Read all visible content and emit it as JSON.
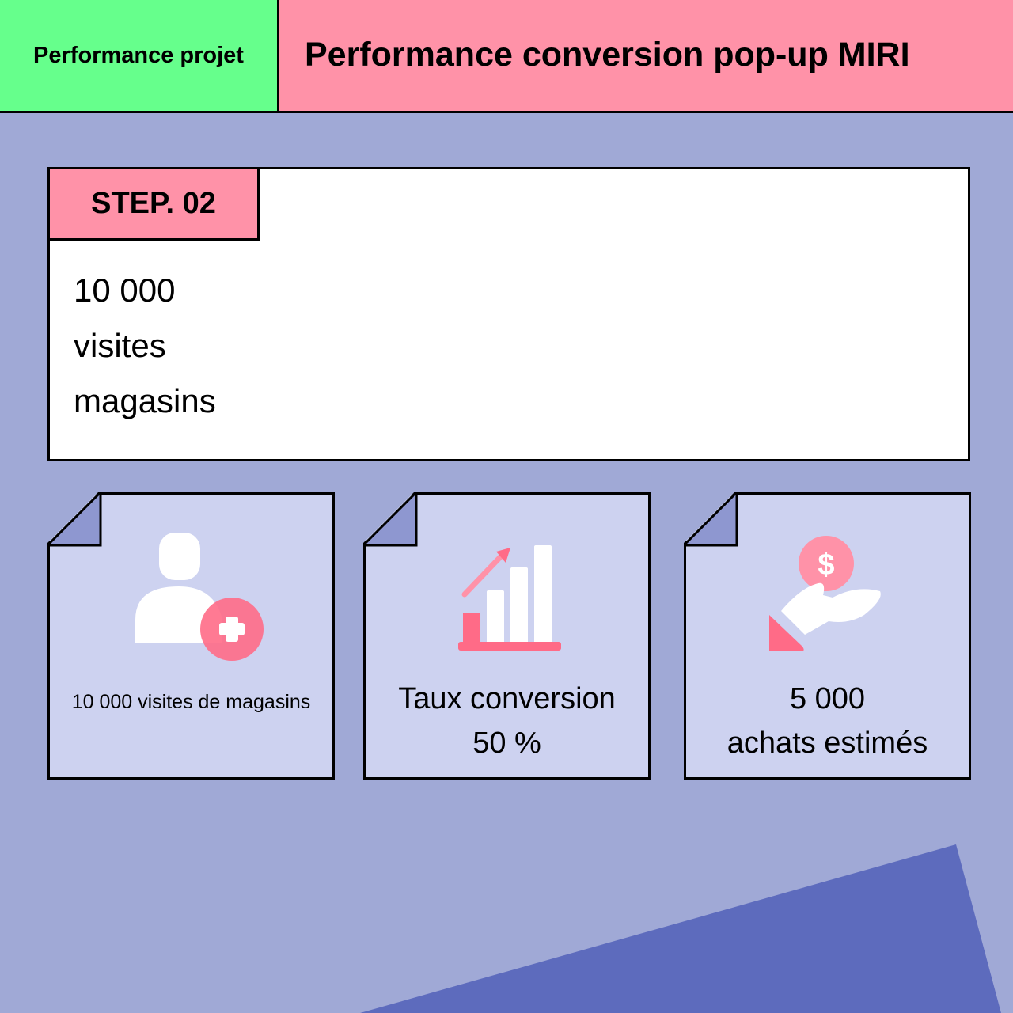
{
  "header": {
    "section": "Performance projet",
    "title": "Performance conversion pop-up MIRI"
  },
  "step": {
    "badge": "STEP. 02",
    "lines": [
      "10 000",
      "visites",
      "magasins"
    ]
  },
  "cards": [
    {
      "icon": "user-add-icon",
      "text": "10 000 visites de magasins"
    },
    {
      "icon": "growth-chart-icon",
      "line1": "Taux conversion",
      "line2": "50 %"
    },
    {
      "icon": "hand-coin-icon",
      "line1": "5 000",
      "line2": "achats estimés"
    }
  ],
  "colors": {
    "green": "#66ff8c",
    "pink": "#ff92a8",
    "accent": "#ff6b87",
    "background": "#a0a9d6",
    "card": "#cdd2f0",
    "shape": "#5d6bbd"
  }
}
